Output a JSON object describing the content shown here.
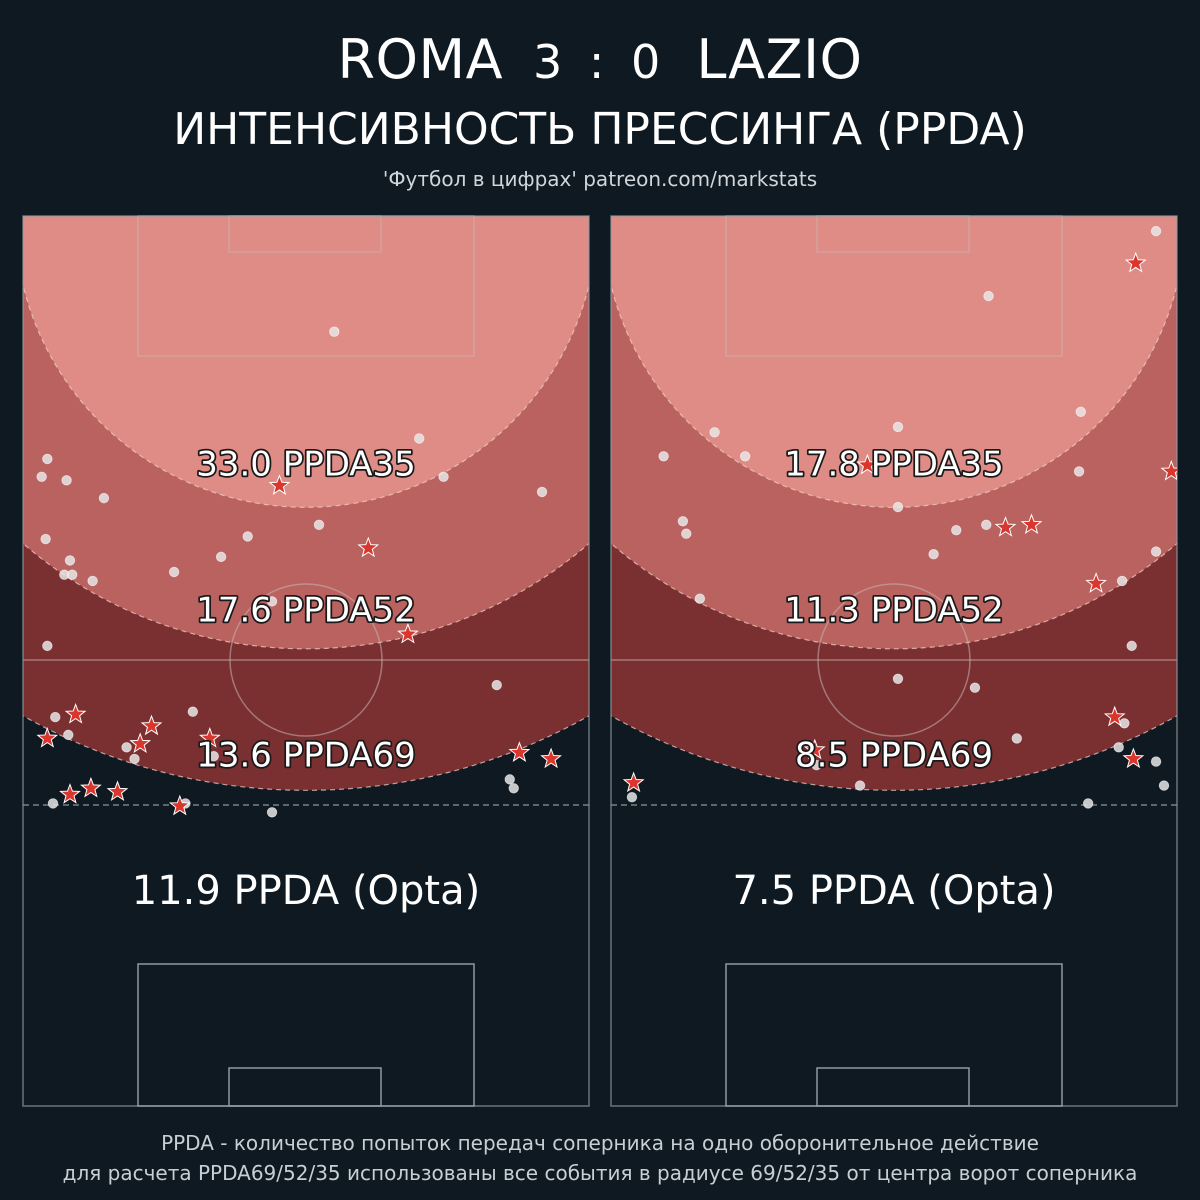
{
  "header": {
    "home_team": "ROMA",
    "score": "3 : 0",
    "away_team": "LAZIO",
    "subtitle": "ИНТЕНСИВНОСТЬ ПРЕССИНГА (PPDA)",
    "credit": "'Футбол в цифрах' patreon.com/markstats"
  },
  "footer": {
    "line1": "PPDA - количество попыток передач соперника на одно оборонительное действие",
    "line2": "для расчета PPDA69/52/35 использованы все события в радиусе 69/52/35 от центра ворот соперника"
  },
  "colors": {
    "background": "#0e1921",
    "zone69": "#7a2f31",
    "zone52": "#b9625f",
    "zone35": "#e08c86",
    "marker_dot": "#e6e6e6",
    "marker_star": "#d9372e"
  },
  "chart_data": [
    {
      "type": "scatter",
      "team": "ROMA",
      "zones": [
        {
          "label": "33.0 PPDA35",
          "radius": 35,
          "value": 33.0
        },
        {
          "label": "17.6 PPDA52",
          "radius": 52,
          "value": 17.6
        },
        {
          "label": "13.6 PPDA69",
          "radius": 69,
          "value": 13.6
        }
      ],
      "opta_label": "11.9 PPDA (Opta)",
      "opta_value": 11.9,
      "points": [
        {
          "x": 55,
          "y": 13.0,
          "kind": "dot"
        },
        {
          "x": 4.3,
          "y": 27.3,
          "kind": "dot"
        },
        {
          "x": 3.3,
          "y": 29.3,
          "kind": "dot"
        },
        {
          "x": 7.7,
          "y": 29.7,
          "kind": "dot"
        },
        {
          "x": 14.3,
          "y": 31.7,
          "kind": "dot"
        },
        {
          "x": 4.0,
          "y": 36.3,
          "kind": "dot"
        },
        {
          "x": 8.3,
          "y": 38.7,
          "kind": "dot"
        },
        {
          "x": 7.3,
          "y": 40.3,
          "kind": "dot"
        },
        {
          "x": 8.7,
          "y": 40.3,
          "kind": "dot"
        },
        {
          "x": 12.3,
          "y": 41.0,
          "kind": "dot"
        },
        {
          "x": 35.0,
          "y": 38.3,
          "kind": "dot"
        },
        {
          "x": 39.7,
          "y": 36.0,
          "kind": "dot"
        },
        {
          "x": 52.3,
          "y": 34.7,
          "kind": "dot"
        },
        {
          "x": 70.0,
          "y": 25.0,
          "kind": "dot"
        },
        {
          "x": 74.3,
          "y": 29.3,
          "kind": "dot"
        },
        {
          "x": 91.7,
          "y": 31.0,
          "kind": "dot"
        },
        {
          "x": 44.0,
          "y": 43.3,
          "kind": "dot"
        },
        {
          "x": 26.7,
          "y": 40.0,
          "kind": "dot"
        },
        {
          "x": 4.3,
          "y": 48.3,
          "kind": "dot"
        },
        {
          "x": 83.7,
          "y": 52.7,
          "kind": "dot"
        },
        {
          "x": 30.0,
          "y": 55.7,
          "kind": "dot"
        },
        {
          "x": 5.7,
          "y": 56.3,
          "kind": "dot"
        },
        {
          "x": 8.0,
          "y": 58.3,
          "kind": "dot"
        },
        {
          "x": 18.3,
          "y": 59.7,
          "kind": "dot"
        },
        {
          "x": 19.7,
          "y": 61.0,
          "kind": "dot"
        },
        {
          "x": 33.7,
          "y": 60.7,
          "kind": "dot"
        },
        {
          "x": 86.0,
          "y": 63.3,
          "kind": "dot"
        },
        {
          "x": 86.7,
          "y": 64.3,
          "kind": "dot"
        },
        {
          "x": 5.3,
          "y": 66.0,
          "kind": "dot"
        },
        {
          "x": 28.7,
          "y": 66.0,
          "kind": "dot"
        },
        {
          "x": 44.0,
          "y": 67.0,
          "kind": "dot"
        },
        {
          "x": 45.3,
          "y": 30.3,
          "kind": "star"
        },
        {
          "x": 61.0,
          "y": 37.3,
          "kind": "star"
        },
        {
          "x": 68.0,
          "y": 47.0,
          "kind": "star"
        },
        {
          "x": 9.3,
          "y": 56.0,
          "kind": "star"
        },
        {
          "x": 4.3,
          "y": 58.7,
          "kind": "star"
        },
        {
          "x": 22.7,
          "y": 57.3,
          "kind": "star"
        },
        {
          "x": 20.7,
          "y": 59.3,
          "kind": "star"
        },
        {
          "x": 33.0,
          "y": 58.7,
          "kind": "star"
        },
        {
          "x": 87.7,
          "y": 60.3,
          "kind": "star"
        },
        {
          "x": 93.3,
          "y": 61.0,
          "kind": "star"
        },
        {
          "x": 12.0,
          "y": 64.3,
          "kind": "star"
        },
        {
          "x": 8.3,
          "y": 65.0,
          "kind": "star"
        },
        {
          "x": 16.7,
          "y": 64.7,
          "kind": "star"
        },
        {
          "x": 27.7,
          "y": 66.3,
          "kind": "star"
        }
      ]
    },
    {
      "type": "scatter",
      "team": "LAZIO",
      "zones": [
        {
          "label": "17.8 PPDA35",
          "radius": 35,
          "value": 17.8
        },
        {
          "label": "11.3 PPDA52",
          "radius": 52,
          "value": 11.3
        },
        {
          "label": "8.5 PPDA69",
          "radius": 69,
          "value": 8.5
        }
      ],
      "opta_label": "7.5 PPDA (Opta)",
      "opta_value": 7.5,
      "points": [
        {
          "x": 96.3,
          "y": 1.7,
          "kind": "dot"
        },
        {
          "x": 66.7,
          "y": 9.0,
          "kind": "dot"
        },
        {
          "x": 18.3,
          "y": 24.3,
          "kind": "dot"
        },
        {
          "x": 50.7,
          "y": 23.7,
          "kind": "dot"
        },
        {
          "x": 9.3,
          "y": 27.0,
          "kind": "dot"
        },
        {
          "x": 23.7,
          "y": 27.0,
          "kind": "dot"
        },
        {
          "x": 83.0,
          "y": 22.0,
          "kind": "dot"
        },
        {
          "x": 82.7,
          "y": 28.7,
          "kind": "dot"
        },
        {
          "x": 12.7,
          "y": 34.3,
          "kind": "dot"
        },
        {
          "x": 13.3,
          "y": 35.7,
          "kind": "dot"
        },
        {
          "x": 50.7,
          "y": 32.7,
          "kind": "dot"
        },
        {
          "x": 66.3,
          "y": 34.7,
          "kind": "dot"
        },
        {
          "x": 61.0,
          "y": 35.3,
          "kind": "dot"
        },
        {
          "x": 57.0,
          "y": 38.0,
          "kind": "dot"
        },
        {
          "x": 96.3,
          "y": 37.7,
          "kind": "dot"
        },
        {
          "x": 90.3,
          "y": 41.0,
          "kind": "dot"
        },
        {
          "x": 15.7,
          "y": 43.0,
          "kind": "dot"
        },
        {
          "x": 92.0,
          "y": 48.3,
          "kind": "dot"
        },
        {
          "x": 50.7,
          "y": 52.0,
          "kind": "dot"
        },
        {
          "x": 64.3,
          "y": 53.0,
          "kind": "dot"
        },
        {
          "x": 90.7,
          "y": 57.0,
          "kind": "dot"
        },
        {
          "x": 71.7,
          "y": 58.7,
          "kind": "dot"
        },
        {
          "x": 89.7,
          "y": 59.7,
          "kind": "dot"
        },
        {
          "x": 96.3,
          "y": 61.3,
          "kind": "dot"
        },
        {
          "x": 36.3,
          "y": 61.7,
          "kind": "dot"
        },
        {
          "x": 44.0,
          "y": 64.0,
          "kind": "dot"
        },
        {
          "x": 97.7,
          "y": 64.0,
          "kind": "dot"
        },
        {
          "x": 3.7,
          "y": 65.3,
          "kind": "dot"
        },
        {
          "x": 84.3,
          "y": 66.0,
          "kind": "dot"
        },
        {
          "x": 92.7,
          "y": 5.3,
          "kind": "star"
        },
        {
          "x": 45.3,
          "y": 28.0,
          "kind": "star"
        },
        {
          "x": 99.0,
          "y": 28.7,
          "kind": "star"
        },
        {
          "x": 69.7,
          "y": 35.0,
          "kind": "star"
        },
        {
          "x": 74.3,
          "y": 34.7,
          "kind": "star"
        },
        {
          "x": 85.7,
          "y": 41.3,
          "kind": "star"
        },
        {
          "x": 89.0,
          "y": 56.3,
          "kind": "star"
        },
        {
          "x": 36.0,
          "y": 60.0,
          "kind": "star"
        },
        {
          "x": 92.3,
          "y": 61.0,
          "kind": "star"
        },
        {
          "x": 4.0,
          "y": 63.7,
          "kind": "star"
        }
      ]
    }
  ]
}
